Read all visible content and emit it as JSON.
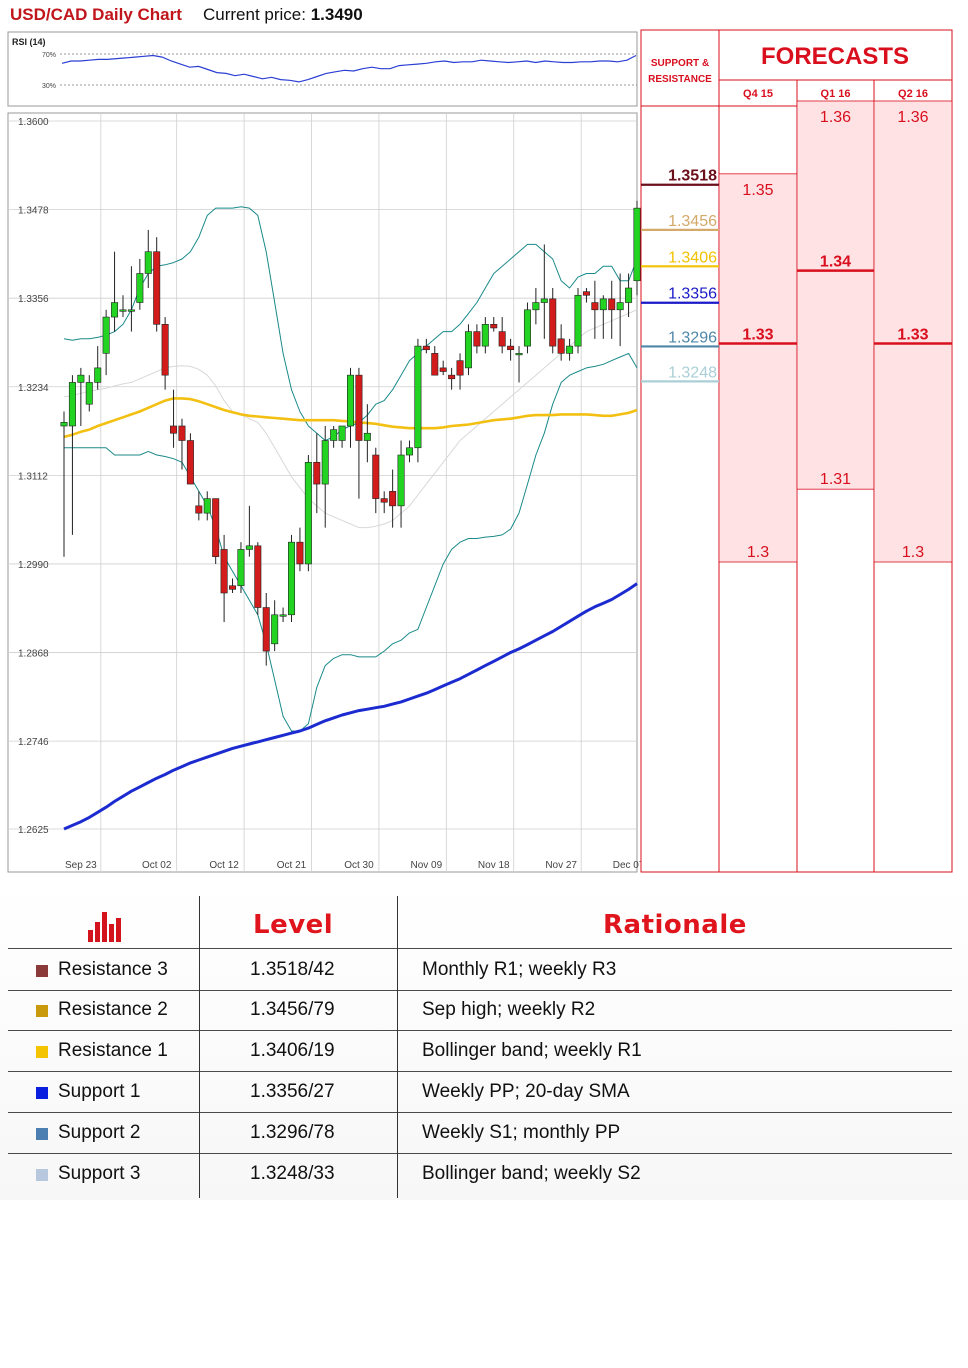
{
  "header": {
    "title": "USD/CAD Daily Chart",
    "price_label": "Current price:",
    "price_value": "1.3490"
  },
  "rsi": {
    "label": "RSI (14)",
    "level_high": "70%",
    "level_low": "30%",
    "values": [
      58,
      61,
      61,
      62,
      63,
      63,
      64,
      65,
      66,
      67,
      68,
      66,
      61,
      57,
      53,
      54,
      50,
      46,
      45,
      42,
      44,
      41,
      38,
      40,
      37,
      36,
      34,
      37,
      41,
      45,
      47,
      49,
      48,
      51,
      53,
      51,
      51,
      55,
      56,
      57,
      58,
      60,
      61,
      59,
      60,
      60,
      62,
      61,
      60,
      59,
      60,
      61,
      59,
      61,
      60,
      59,
      59,
      60,
      60,
      61,
      61,
      60,
      62,
      68
    ]
  },
  "chart_data": {
    "type": "candlestick",
    "title": "USD/CAD Daily Chart",
    "y_ticks": [
      "1.3600",
      "1.3478",
      "1.3356",
      "1.3234",
      "1.3112",
      "1.2990",
      "1.2868",
      "1.2746",
      "1.2625"
    ],
    "ylim": [
      1.2625,
      1.36
    ],
    "x_ticks": [
      {
        "label": "Sep 23",
        "i": 2
      },
      {
        "label": "Oct 02",
        "i": 11
      },
      {
        "label": "Oct 12",
        "i": 19
      },
      {
        "label": "Oct 21",
        "i": 27
      },
      {
        "label": "Oct 30",
        "i": 35
      },
      {
        "label": "Nov 09",
        "i": 43
      },
      {
        "label": "Nov 18",
        "i": 51
      },
      {
        "label": "Nov 27",
        "i": 59
      },
      {
        "label": "Dec 07",
        "i": 67
      }
    ],
    "candles": [
      {
        "o": 1.318,
        "h": 1.32,
        "l": 1.3,
        "c": 1.3185
      },
      {
        "o": 1.318,
        "h": 1.325,
        "l": 1.303,
        "c": 1.324
      },
      {
        "o": 1.324,
        "h": 1.326,
        "l": 1.318,
        "c": 1.325
      },
      {
        "o": 1.321,
        "h": 1.325,
        "l": 1.32,
        "c": 1.324
      },
      {
        "o": 1.324,
        "h": 1.329,
        "l": 1.323,
        "c": 1.326
      },
      {
        "o": 1.328,
        "h": 1.334,
        "l": 1.325,
        "c": 1.333
      },
      {
        "o": 1.333,
        "h": 1.342,
        "l": 1.331,
        "c": 1.335
      },
      {
        "o": 1.334,
        "h": 1.336,
        "l": 1.333,
        "c": 1.334
      },
      {
        "o": 1.334,
        "h": 1.34,
        "l": 1.331,
        "c": 1.334
      },
      {
        "o": 1.335,
        "h": 1.341,
        "l": 1.334,
        "c": 1.339
      },
      {
        "o": 1.339,
        "h": 1.345,
        "l": 1.337,
        "c": 1.342
      },
      {
        "o": 1.342,
        "h": 1.344,
        "l": 1.331,
        "c": 1.332
      },
      {
        "o": 1.332,
        "h": 1.333,
        "l": 1.323,
        "c": 1.325
      },
      {
        "o": 1.318,
        "h": 1.323,
        "l": 1.315,
        "c": 1.317
      },
      {
        "o": 1.318,
        "h": 1.319,
        "l": 1.312,
        "c": 1.316
      },
      {
        "o": 1.316,
        "h": 1.317,
        "l": 1.31,
        "c": 1.31
      },
      {
        "o": 1.307,
        "h": 1.309,
        "l": 1.305,
        "c": 1.306
      },
      {
        "o": 1.306,
        "h": 1.309,
        "l": 1.305,
        "c": 1.308
      },
      {
        "o": 1.308,
        "h": 1.308,
        "l": 1.299,
        "c": 1.3
      },
      {
        "o": 1.301,
        "h": 1.303,
        "l": 1.291,
        "c": 1.295
      },
      {
        "o": 1.296,
        "h": 1.297,
        "l": 1.295,
        "c": 1.2955
      },
      {
        "o": 1.296,
        "h": 1.302,
        "l": 1.295,
        "c": 1.301
      },
      {
        "o": 1.301,
        "h": 1.307,
        "l": 1.3,
        "c": 1.3015
      },
      {
        "o": 1.3015,
        "h": 1.302,
        "l": 1.292,
        "c": 1.293
      },
      {
        "o": 1.293,
        "h": 1.295,
        "l": 1.285,
        "c": 1.287
      },
      {
        "o": 1.288,
        "h": 1.294,
        "l": 1.287,
        "c": 1.292
      },
      {
        "o": 1.292,
        "h": 1.293,
        "l": 1.291,
        "c": 1.292
      },
      {
        "o": 1.292,
        "h": 1.303,
        "l": 1.291,
        "c": 1.302
      },
      {
        "o": 1.302,
        "h": 1.304,
        "l": 1.298,
        "c": 1.299
      },
      {
        "o": 1.299,
        "h": 1.314,
        "l": 1.298,
        "c": 1.313
      },
      {
        "o": 1.313,
        "h": 1.317,
        "l": 1.306,
        "c": 1.31
      },
      {
        "o": 1.31,
        "h": 1.318,
        "l": 1.304,
        "c": 1.316
      },
      {
        "o": 1.316,
        "h": 1.318,
        "l": 1.315,
        "c": 1.3175
      },
      {
        "o": 1.316,
        "h": 1.318,
        "l": 1.315,
        "c": 1.318
      },
      {
        "o": 1.318,
        "h": 1.326,
        "l": 1.315,
        "c": 1.325
      },
      {
        "o": 1.325,
        "h": 1.326,
        "l": 1.308,
        "c": 1.316
      },
      {
        "o": 1.316,
        "h": 1.321,
        "l": 1.313,
        "c": 1.317
      },
      {
        "o": 1.314,
        "h": 1.315,
        "l": 1.306,
        "c": 1.308
      },
      {
        "o": 1.308,
        "h": 1.309,
        "l": 1.306,
        "c": 1.3075
      },
      {
        "o": 1.309,
        "h": 1.312,
        "l": 1.304,
        "c": 1.307
      },
      {
        "o": 1.307,
        "h": 1.316,
        "l": 1.304,
        "c": 1.314
      },
      {
        "o": 1.314,
        "h": 1.316,
        "l": 1.313,
        "c": 1.315
      },
      {
        "o": 1.315,
        "h": 1.33,
        "l": 1.313,
        "c": 1.329
      },
      {
        "o": 1.329,
        "h": 1.33,
        "l": 1.328,
        "c": 1.3285
      },
      {
        "o": 1.328,
        "h": 1.329,
        "l": 1.325,
        "c": 1.325
      },
      {
        "o": 1.326,
        "h": 1.327,
        "l": 1.325,
        "c": 1.3255
      },
      {
        "o": 1.325,
        "h": 1.326,
        "l": 1.323,
        "c": 1.3245
      },
      {
        "o": 1.327,
        "h": 1.328,
        "l": 1.323,
        "c": 1.325
      },
      {
        "o": 1.326,
        "h": 1.332,
        "l": 1.325,
        "c": 1.331
      },
      {
        "o": 1.331,
        "h": 1.332,
        "l": 1.328,
        "c": 1.329
      },
      {
        "o": 1.329,
        "h": 1.333,
        "l": 1.328,
        "c": 1.332
      },
      {
        "o": 1.332,
        "h": 1.333,
        "l": 1.331,
        "c": 1.3315
      },
      {
        "o": 1.331,
        "h": 1.333,
        "l": 1.328,
        "c": 1.329
      },
      {
        "o": 1.329,
        "h": 1.33,
        "l": 1.327,
        "c": 1.3285
      },
      {
        "o": 1.328,
        "h": 1.329,
        "l": 1.324,
        "c": 1.328
      },
      {
        "o": 1.329,
        "h": 1.335,
        "l": 1.328,
        "c": 1.334
      },
      {
        "o": 1.334,
        "h": 1.337,
        "l": 1.332,
        "c": 1.335
      },
      {
        "o": 1.335,
        "h": 1.343,
        "l": 1.33,
        "c": 1.3355
      },
      {
        "o": 1.3355,
        "h": 1.337,
        "l": 1.328,
        "c": 1.329
      },
      {
        "o": 1.33,
        "h": 1.332,
        "l": 1.327,
        "c": 1.328
      },
      {
        "o": 1.328,
        "h": 1.33,
        "l": 1.327,
        "c": 1.329
      },
      {
        "o": 1.329,
        "h": 1.337,
        "l": 1.328,
        "c": 1.336
      },
      {
        "o": 1.3365,
        "h": 1.337,
        "l": 1.335,
        "c": 1.336
      },
      {
        "o": 1.335,
        "h": 1.338,
        "l": 1.33,
        "c": 1.334
      },
      {
        "o": 1.334,
        "h": 1.336,
        "l": 1.33,
        "c": 1.3355
      },
      {
        "o": 1.3355,
        "h": 1.338,
        "l": 1.33,
        "c": 1.334
      },
      {
        "o": 1.334,
        "h": 1.339,
        "l": 1.329,
        "c": 1.335
      },
      {
        "o": 1.335,
        "h": 1.339,
        "l": 1.333,
        "c": 1.337
      },
      {
        "o": 1.338,
        "h": 1.349,
        "l": 1.336,
        "c": 1.348
      }
    ],
    "series": [
      {
        "name": "bb_upper",
        "color": "#1a8a8a",
        "values": [
          1.33,
          1.3298,
          1.33,
          1.33,
          1.3302,
          1.3305,
          1.331,
          1.332,
          1.334,
          1.337,
          1.339,
          1.34,
          1.3402,
          1.3405,
          1.341,
          1.342,
          1.344,
          1.347,
          1.348,
          1.348,
          1.348,
          1.3482,
          1.348,
          1.347,
          1.342,
          1.335,
          1.328,
          1.323,
          1.32,
          1.318,
          1.317,
          1.316,
          1.3165,
          1.3175,
          1.318,
          1.3185,
          1.3195,
          1.321,
          1.3215,
          1.323,
          1.325,
          1.327,
          1.328,
          1.329,
          1.33,
          1.331,
          1.331,
          1.332,
          1.3335,
          1.335,
          1.337,
          1.339,
          1.34,
          1.341,
          1.342,
          1.343,
          1.343,
          1.342,
          1.341,
          1.338,
          1.337,
          1.3385,
          1.339,
          1.339,
          1.34,
          1.34,
          1.338,
          1.338,
          1.341
        ]
      },
      {
        "name": "bb_lower",
        "color": "#1a8a8a",
        "values": [
          1.315,
          1.315,
          1.315,
          1.315,
          1.315,
          1.315,
          1.314,
          1.314,
          1.314,
          1.314,
          1.3145,
          1.314,
          1.3138,
          1.3135,
          1.313,
          1.311,
          1.309,
          1.307,
          1.304,
          1.3,
          1.298,
          1.296,
          1.294,
          1.292,
          1.288,
          1.283,
          1.278,
          1.276,
          1.276,
          1.277,
          1.282,
          1.285,
          1.286,
          1.2865,
          1.2865,
          1.2862,
          1.2862,
          1.2862,
          1.287,
          1.288,
          1.2885,
          1.2895,
          1.29,
          1.293,
          1.296,
          1.299,
          1.301,
          1.302,
          1.3025,
          1.3025,
          1.3027,
          1.3028,
          1.303,
          1.3038,
          1.306,
          1.31,
          1.314,
          1.317,
          1.321,
          1.324,
          1.325,
          1.3255,
          1.326,
          1.3262,
          1.3265,
          1.327,
          1.3275,
          1.328,
          1.326
        ]
      },
      {
        "name": "sma_20",
        "color": "#d8d8d8",
        "values": [
          1.322,
          1.3222,
          1.3225,
          1.3228,
          1.323,
          1.3232,
          1.3235,
          1.3238,
          1.324,
          1.3245,
          1.325,
          1.3255,
          1.326,
          1.3262,
          1.3263,
          1.3262,
          1.3258,
          1.325,
          1.3235,
          1.3215,
          1.32,
          1.3195,
          1.319,
          1.3185,
          1.317,
          1.315,
          1.313,
          1.311,
          1.3095,
          1.308,
          1.307,
          1.306,
          1.3055,
          1.305,
          1.3045,
          1.304,
          1.304,
          1.3042,
          1.3045,
          1.305,
          1.306,
          1.307,
          1.3085,
          1.31,
          1.3115,
          1.313,
          1.3145,
          1.316,
          1.317,
          1.318,
          1.319,
          1.32,
          1.321,
          1.322,
          1.323,
          1.324,
          1.325,
          1.326,
          1.327,
          1.328,
          1.329,
          1.33,
          1.331,
          1.3315,
          1.332,
          1.3325,
          1.333,
          1.3335,
          1.334
        ]
      },
      {
        "name": "sma_100",
        "color": "#f3c012",
        "values": [
          1.3165,
          1.3168,
          1.3172,
          1.3175,
          1.318,
          1.3184,
          1.3188,
          1.3192,
          1.3196,
          1.32,
          1.3205,
          1.321,
          1.3215,
          1.3218,
          1.3218,
          1.3217,
          1.3214,
          1.321,
          1.3206,
          1.3202,
          1.3199,
          1.3196,
          1.3194,
          1.3193,
          1.3192,
          1.3191,
          1.319,
          1.3189,
          1.3188,
          1.3188,
          1.3188,
          1.3188,
          1.3188,
          1.3187,
          1.3186,
          1.3185,
          1.3184,
          1.3183,
          1.3181,
          1.3179,
          1.3178,
          1.3177,
          1.3177,
          1.3177,
          1.3177,
          1.3178,
          1.318,
          1.3181,
          1.3182,
          1.3184,
          1.3186,
          1.3188,
          1.3189,
          1.319,
          1.3192,
          1.3194,
          1.3195,
          1.3195,
          1.3195,
          1.3196,
          1.3196,
          1.3196,
          1.3196,
          1.3195,
          1.3194,
          1.3194,
          1.3196,
          1.3198,
          1.3202
        ]
      },
      {
        "name": "sma_200",
        "color": "#1c2bd0",
        "values": [
          1.2625,
          1.263,
          1.2635,
          1.2641,
          1.2648,
          1.2655,
          1.2663,
          1.267,
          1.2677,
          1.2683,
          1.2689,
          1.2695,
          1.27,
          1.2706,
          1.2711,
          1.2716,
          1.272,
          1.2724,
          1.2728,
          1.2732,
          1.2736,
          1.2739,
          1.2742,
          1.2745,
          1.2748,
          1.2751,
          1.2754,
          1.2757,
          1.276,
          1.2764,
          1.2769,
          1.2774,
          1.2778,
          1.2782,
          1.2785,
          1.2788,
          1.279,
          1.2792,
          1.2794,
          1.2797,
          1.28,
          1.2804,
          1.2808,
          1.2812,
          1.2817,
          1.2822,
          1.2827,
          1.2832,
          1.2838,
          1.2844,
          1.285,
          1.2856,
          1.2862,
          1.2868,
          1.2873,
          1.2879,
          1.2885,
          1.2891,
          1.2897,
          1.2904,
          1.2911,
          1.2918,
          1.2925,
          1.2931,
          1.2936,
          1.2941,
          1.2948,
          1.2955,
          1.2963
        ]
      }
    ],
    "levels": [
      {
        "label": "1.3518",
        "value": 1.3518,
        "color": "#6b0f1a",
        "bold": true
      },
      {
        "label": "1.3456",
        "value": 1.3456,
        "color": "#d4a96a",
        "bold": false
      },
      {
        "label": "1.3406",
        "value": 1.3406,
        "color": "#f2c300",
        "bold": false
      },
      {
        "label": "1.3356",
        "value": 1.3356,
        "color": "#1a1ac8",
        "bold": false
      },
      {
        "label": "1.3296",
        "value": 1.3296,
        "color": "#4f86a8",
        "bold": false
      },
      {
        "label": "1.3248",
        "value": 1.3248,
        "color": "#aacfd6",
        "bold": false
      }
    ]
  },
  "forecasts": {
    "sr_header": "SUPPORT & RESISTANCE",
    "title": "FORECASTS",
    "columns": [
      {
        "label": "Q4 15",
        "high": "1.35",
        "high_value": 1.35,
        "median": "1.33",
        "median_value": 1.33,
        "low": "1.3",
        "low_value": 1.3
      },
      {
        "label": "Q1 16",
        "high": "1.36",
        "high_value": 1.36,
        "median": "1.34",
        "median_value": 1.34,
        "low": "1.31",
        "low_value": 1.31
      },
      {
        "label": "Q2 16",
        "high": "1.36",
        "high_value": 1.36,
        "median": "1.33",
        "median_value": 1.33,
        "low": "1.3",
        "low_value": 1.3
      }
    ]
  },
  "table": {
    "header_level": "Level",
    "header_rationale": "Rationale",
    "rows": [
      {
        "name": "Resistance 3",
        "level": "1.3518/42",
        "rationale": "Monthly R1; weekly R3",
        "color": "#8b3a3a"
      },
      {
        "name": "Resistance 2",
        "level": "1.3456/79",
        "rationale": "Sep high; weekly R2",
        "color": "#c99a0e"
      },
      {
        "name": "Resistance 1",
        "level": "1.3406/19",
        "rationale": "Bollinger band; weekly R1",
        "color": "#f5c400"
      },
      {
        "name": "Support 1",
        "level": "1.3356/27",
        "rationale": "Weekly PP; 20-day SMA",
        "color": "#0a1ee0"
      },
      {
        "name": "Support 2",
        "level": "1.3296/78",
        "rationale": "Weekly S1; monthly PP",
        "color": "#4b7fb2"
      },
      {
        "name": "Support 3",
        "level": "1.3248/33",
        "rationale": "Bollinger band; weekly S2",
        "color": "#b7c8de"
      }
    ]
  }
}
